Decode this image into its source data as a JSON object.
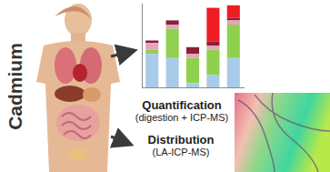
{
  "side_label": "Cadmium",
  "chart_data": {
    "type": "bar",
    "stacked": true,
    "tick_labels": false,
    "grid": false,
    "categories": [
      null,
      null,
      null,
      null,
      null
    ],
    "ylim": [
      0,
      100
    ],
    "series": [
      {
        "color": "#a9cbe9",
        "values": [
          40,
          35,
          5,
          15,
          35
        ]
      },
      {
        "color": "#8fd14f",
        "values": [
          5,
          35,
          30,
          30,
          40
        ]
      },
      {
        "color": "#e3a6bd",
        "values": [
          8,
          5,
          5,
          5,
          5
        ]
      },
      {
        "color": "#8b1f35",
        "values": [
          3,
          5,
          8,
          5,
          3
        ]
      },
      {
        "color": "#ee1c25",
        "values": [
          0,
          0,
          0,
          40,
          15
        ]
      }
    ]
  },
  "quantification": {
    "title": "Quantification",
    "subtitle": "(digestion + ICP-MS)"
  },
  "distribution": {
    "title": "Distribution",
    "subtitle": "(LA-ICP-MS)"
  }
}
